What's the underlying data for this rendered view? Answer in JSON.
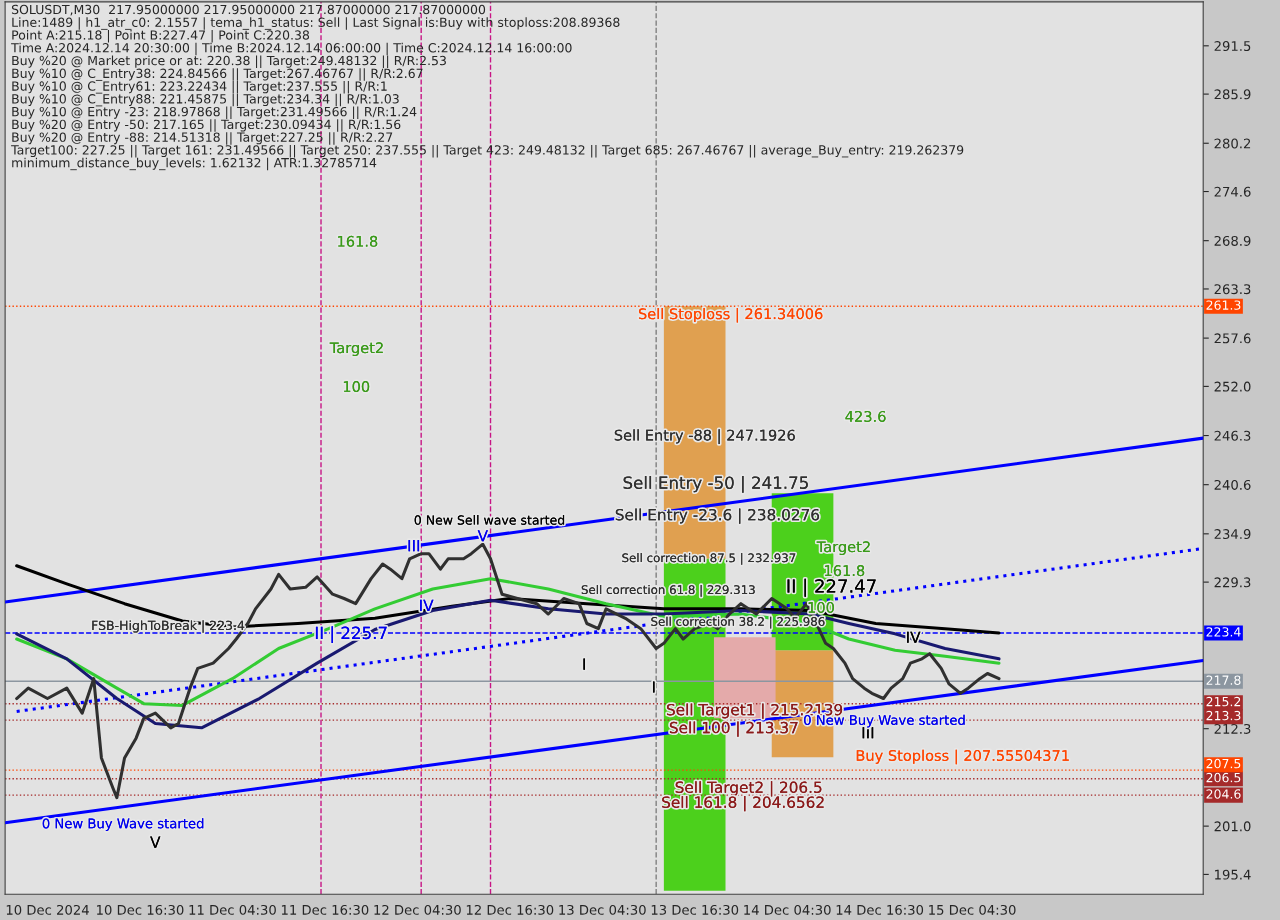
{
  "chart_data": {
    "type": "line",
    "title": "SOLUSDT,M30  217.95000000 217.95000000 217.87000000 217.87000000",
    "xlim": [
      "2024-12-09T23:00",
      "2024-12-16T10:30"
    ],
    "ylim": [
      193.1,
      296.6
    ],
    "xticks": [
      {
        "value": "2024-12-10T04:30",
        "label": "10 Dec 2024"
      },
      {
        "value": "2024-12-10T16:30",
        "label": "10 Dec 16:30"
      },
      {
        "value": "2024-12-11T04:30",
        "label": "11 Dec 04:30"
      },
      {
        "value": "2024-12-11T16:30",
        "label": "11 Dec 16:30"
      },
      {
        "value": "2024-12-12T04:30",
        "label": "12 Dec 04:30"
      },
      {
        "value": "2024-12-12T16:30",
        "label": "12 Dec 16:30"
      },
      {
        "value": "2024-12-13T04:30",
        "label": "13 Dec 04:30"
      },
      {
        "value": "2024-12-13T16:30",
        "label": "13 Dec 16:30"
      },
      {
        "value": "2024-12-14T04:30",
        "label": "14 Dec 04:30"
      },
      {
        "value": "2024-12-14T16:30",
        "label": "14 Dec 16:30"
      },
      {
        "value": "2024-12-15T04:30",
        "label": "15 Dec 04:30"
      }
    ],
    "yticks": [
      291.5,
      285.9,
      280.2,
      274.6,
      268.9,
      263.3,
      257.6,
      {
        "value": 252.0,
        "label": "252.0"
      },
      246.3,
      240.6,
      234.9,
      229.3,
      212.3,
      {
        "value": 201.0,
        "label": "201.0"
      },
      195.4
    ],
    "series": [
      {
        "type": "bar",
        "color": "#e0a050",
        "x": [
          "2024-12-13T16:30",
          "2024-12-14T06:30"
        ],
        "base": [
          232.0,
          209.0
        ],
        "values": [
          29.3,
          12.4
        ]
      },
      {
        "type": "bar",
        "color": "#4cd01c",
        "x": [
          "2024-12-13T16:30",
          "2024-12-14T06:30"
        ],
        "base": [
          193.5,
          221.4
        ],
        "values": [
          38.5,
          18.2
        ]
      },
      {
        "type": "bar",
        "color": "#e4aaaa",
        "x": [
          "2024-12-13T23:00"
        ],
        "base": [
          213.5
        ],
        "values": [
          9.4
        ]
      },
      {
        "color": "#0000ff",
        "line_style": "solid",
        "x": [
          "2024-12-09T23:00",
          "2024-12-16T10:30"
        ],
        "values": [
          227.0,
          246.0
        ]
      },
      {
        "color": "#0000ff",
        "line_style": "solid",
        "x": [
          "2024-12-09T23:00",
          "2024-12-16T10:30"
        ],
        "values": [
          201.4,
          220.2
        ]
      },
      {
        "color": "#0000ff",
        "line_style": "dotted",
        "x": [
          "2024-12-10T00:30",
          "2024-12-16T10:30"
        ],
        "values": [
          214.3,
          233.2
        ]
      },
      {
        "color": "#000000",
        "line_style": "solid",
        "x": [
          "2024-12-10T00:30",
          "2024-12-10T07:00",
          "2024-12-10T14:30",
          "2024-12-10T22:00",
          "2024-12-11T04:30",
          "2024-12-11T13:00",
          "2024-12-11T23:00",
          "2024-12-12T09:00",
          "2024-12-12T16:30",
          "2024-12-13T02:30",
          "2024-12-13T12:30",
          "2024-12-13T22:30",
          "2024-12-14T07:30",
          "2024-12-14T16:00",
          "2024-12-15T01:00",
          "2024-12-15T08:00"
        ],
        "values": [
          231.2,
          229.1,
          226.8,
          224.8,
          224.1,
          224.5,
          225.1,
          226.5,
          227.4,
          226.8,
          226.2,
          226.2,
          226.0,
          224.5,
          223.9,
          223.4
        ]
      },
      {
        "color": "#33cc33",
        "line_style": "solid",
        "x": [
          "2024-12-10T00:30",
          "2024-12-10T07:00",
          "2024-12-10T13:30",
          "2024-12-10T17:00",
          "2024-12-10T22:00",
          "2024-12-11T04:30",
          "2024-12-11T10:30",
          "2024-12-11T17:00",
          "2024-12-11T23:00",
          "2024-12-12T06:30",
          "2024-12-12T14:00",
          "2024-12-12T21:30",
          "2024-12-13T05:00",
          "2024-12-13T12:30",
          "2024-12-13T22:30",
          "2024-12-14T07:30",
          "2024-12-14T12:30",
          "2024-12-14T18:30",
          "2024-12-15T01:00",
          "2024-12-15T08:00"
        ],
        "values": [
          222.7,
          220.4,
          217.0,
          215.2,
          215.0,
          218.1,
          221.6,
          223.9,
          226.2,
          228.5,
          229.7,
          228.5,
          226.8,
          225.3,
          225.6,
          224.5,
          222.7,
          221.4,
          220.7,
          219.9
        ]
      },
      {
        "color": "#191970",
        "line_style": "solid",
        "x": [
          "2024-12-10T00:30",
          "2024-12-10T07:00",
          "2024-12-10T13:30",
          "2024-12-10T18:30",
          "2024-12-11T00:30",
          "2024-12-11T08:00",
          "2024-12-11T15:30",
          "2024-12-11T23:00",
          "2024-12-12T06:30",
          "2024-12-12T14:00",
          "2024-12-12T21:30",
          "2024-12-13T05:00",
          "2024-12-13T12:30",
          "2024-12-13T22:30",
          "2024-12-14T07:30",
          "2024-12-14T12:30",
          "2024-12-14T18:30",
          "2024-12-15T01:00",
          "2024-12-15T08:00"
        ],
        "values": [
          223.3,
          220.4,
          215.8,
          212.9,
          212.4,
          215.8,
          219.9,
          223.8,
          226.0,
          227.2,
          226.2,
          225.6,
          225.6,
          226.0,
          225.6,
          224.5,
          223.3,
          221.6,
          220.4
        ]
      },
      {
        "color": "#303030",
        "line_style": "solid",
        "x": [
          "2024-12-10T00:30",
          "2024-12-10T02:00",
          "2024-12-10T04:30",
          "2024-12-10T07:00",
          "2024-12-10T09:00",
          "2024-12-10T10:30",
          "2024-12-10T11:30",
          "2024-12-10T13:00",
          "2024-12-10T13:30",
          "2024-12-10T14:30",
          "2024-12-10T16:00",
          "2024-12-10T17:00",
          "2024-12-10T18:30",
          "2024-12-10T20:30",
          "2024-12-10T21:30",
          "2024-12-10T23:00",
          "2024-12-11T00:00",
          "2024-12-11T02:00",
          "2024-12-11T04:00",
          "2024-12-11T05:00",
          "2024-12-11T06:30",
          "2024-12-11T07:30",
          "2024-12-11T09:30",
          "2024-12-11T10:30",
          "2024-12-11T12:00",
          "2024-12-11T14:00",
          "2024-12-11T15:30",
          "2024-12-11T17:30",
          "2024-12-11T19:00",
          "2024-12-11T20:30",
          "2024-12-11T22:30",
          "2024-12-12T00:00",
          "2024-12-12T01:00",
          "2024-12-12T02:30",
          "2024-12-12T03:30",
          "2024-12-12T05:00",
          "2024-12-12T06:00",
          "2024-12-12T07:30",
          "2024-12-12T08:30",
          "2024-12-12T10:30",
          "2024-12-12T11:30",
          "2024-12-12T13:00",
          "2024-12-12T14:00",
          "2024-12-12T15:30",
          "2024-12-12T17:30",
          "2024-12-12T20:00",
          "2024-12-12T21:30",
          "2024-12-12T23:30",
          "2024-12-13T01:30",
          "2024-12-13T02:30",
          "2024-12-13T04:00",
          "2024-12-13T05:00",
          "2024-12-13T07:30",
          "2024-12-13T09:30",
          "2024-12-13T11:30",
          "2024-12-13T12:30",
          "2024-12-13T14:00",
          "2024-12-13T15:00",
          "2024-12-13T16:30",
          "2024-12-13T18:30",
          "2024-12-13T19:30",
          "2024-12-13T21:00",
          "2024-12-13T22:30",
          "2024-12-14T00:30",
          "2024-12-14T02:30",
          "2024-12-14T04:30",
          "2024-12-14T05:30",
          "2024-12-14T07:00",
          "2024-12-14T08:00",
          "2024-12-14T09:30",
          "2024-12-14T10:30",
          "2024-12-14T12:00",
          "2024-12-14T13:00",
          "2024-12-14T14:30",
          "2024-12-14T15:30",
          "2024-12-14T17:00",
          "2024-12-14T18:00",
          "2024-12-14T19:30",
          "2024-12-14T20:30",
          "2024-12-14T22:00",
          "2024-12-14T23:00",
          "2024-12-15T00:30",
          "2024-12-15T01:30",
          "2024-12-15T03:00",
          "2024-12-15T04:00",
          "2024-12-15T05:30",
          "2024-12-15T06:30",
          "2024-12-15T08:00"
        ],
        "values": [
          215.8,
          217.0,
          215.8,
          217.0,
          214.1,
          218.1,
          208.9,
          205.4,
          204.3,
          208.9,
          211.2,
          213.5,
          214.1,
          212.4,
          212.9,
          217.0,
          219.3,
          219.9,
          221.6,
          222.7,
          224.5,
          226.2,
          228.5,
          230.2,
          228.5,
          228.7,
          229.9,
          227.9,
          227.4,
          226.8,
          229.7,
          231.4,
          230.8,
          229.7,
          232.0,
          232.6,
          232.6,
          230.8,
          232.0,
          232.0,
          232.6,
          233.7,
          232.0,
          227.9,
          227.4,
          226.8,
          225.6,
          227.4,
          226.8,
          224.5,
          223.9,
          226.2,
          225.1,
          223.9,
          221.6,
          222.2,
          223.9,
          222.7,
          223.9,
          224.5,
          223.9,
          225.6,
          226.8,
          225.6,
          227.4,
          226.2,
          225.1,
          226.8,
          225.1,
          222.2,
          221.6,
          219.9,
          218.1,
          217.0,
          216.4,
          215.8,
          217.0,
          218.1,
          219.9,
          220.4,
          221.0,
          219.3,
          217.5,
          216.4,
          217.0,
          218.1,
          218.7,
          218.1
        ]
      }
    ],
    "ref_lines": [
      {
        "axis": "y",
        "value": 261.3,
        "label": "261.3",
        "color": "#ff4500",
        "line_style": "dotted"
      },
      {
        "axis": "y",
        "value": 223.4,
        "label": "223.4",
        "color": "#0000ff",
        "line_style": "dashed"
      },
      {
        "axis": "y",
        "value": 217.8,
        "label": "217.8",
        "color": "#8c96a0",
        "line_style": "solid"
      },
      {
        "axis": "y",
        "value": 215.2,
        "label": "215.2",
        "color": "#a52a2a",
        "line_style": "dotted"
      },
      {
        "axis": "y",
        "value": 213.3,
        "label": "213.3",
        "color": "#a52a2a",
        "line_style": "dotted"
      },
      {
        "axis": "y",
        "value": 207.5,
        "label": "207.5",
        "color": "#ff4500",
        "line_style": "dotted"
      },
      {
        "axis": "y",
        "value": 206.5,
        "label": "206.5",
        "color": "#a52a2a",
        "line_style": "dotted"
      },
      {
        "axis": "y",
        "value": 204.6,
        "label": "204.6",
        "color": "#a52a2a",
        "line_style": "dotted"
      },
      {
        "axis": "x",
        "value": "2024-12-11T16:00",
        "color": "#c71585",
        "line_style": "dashed"
      },
      {
        "axis": "x",
        "value": "2024-12-12T05:00",
        "color": "#c71585",
        "line_style": "dashed"
      },
      {
        "axis": "x",
        "value": "2024-12-12T14:00",
        "color": "#c71585",
        "line_style": "dashed"
      },
      {
        "axis": "x",
        "value": "2024-12-13T11:30",
        "color": "#808080",
        "line_style": "dashed"
      }
    ],
    "annotations": [
      "Line:1489 | h1_atr_c0: 2.1557 | tema_h1_status: Sell | Last Signal is:Buy with stoploss:208.89368",
      "Point A:215.18 | Point B:227.47 | Point C:220.38",
      "Time A:2024.12.14 20:30:00 | Time B:2024.12.14 06:00:00 | Time C:2024.12.14 16:00:00",
      "Buy %20 @ Market price or at: 220.38 || Target:249.48132 || R/R:2.53",
      "Buy %10 @ C_Entry38: 224.84566 || Target:267.46767 || R/R:2.67",
      "Buy %10 @ C_Entry61: 223.22434 || Target:237.555 || R/R:1",
      "Buy %10 @ C_Entry88: 221.45875 || Target:234.34 || R/R:1.03",
      "Buy %10 @ Entry -23: 218.97868 || Target:231.49566 || R/R:1.24",
      "Buy %20 @ Entry -50: 217.165 || Target:230.09434 || R/R:1.56",
      "Buy %20 @ Entry -88: 214.51318 || Target:227.25 || R/R:2.27",
      "Target100: 227.25 || Target 161: 231.49566 || Target 250: 237.555 || Target 423: 249.48132 || Target 685: 267.46767 || average_Buy_entry: 219.262379",
      "minimum_distance_buy_levels: 1.62132 | ATR:1.32785714",
      "161.8",
      "Target2",
      "100",
      "Sell Stoploss | 261.34006",
      "423.6",
      "Sell Entry -88 | 247.1926",
      "Sell Entry -50 | 241.75",
      "Sell Entry -23.6 | 238.0276",
      "0 New Sell wave started",
      "Target2",
      "Sell correction 87.5 | 232.937",
      "161.8",
      "Sell correction 61.8 | 229.313",
      "II | 227.47",
      "100",
      "Sell correction 38.2 | 225.986",
      "FSB-HighToBreak | 223.4",
      "II | 225.7",
      "IV",
      "III",
      "V",
      "IV",
      "III",
      "I",
      "I",
      "V",
      "Sell Target1 | 215.2139",
      "Sell 100 | 213.37",
      "0 New Buy Wave started",
      "Buy Stoploss | 207.55504371",
      "Sell Target2 | 206.5",
      "Sell 161.8 | 204.6562",
      "0 New Buy Wave started"
    ]
  }
}
